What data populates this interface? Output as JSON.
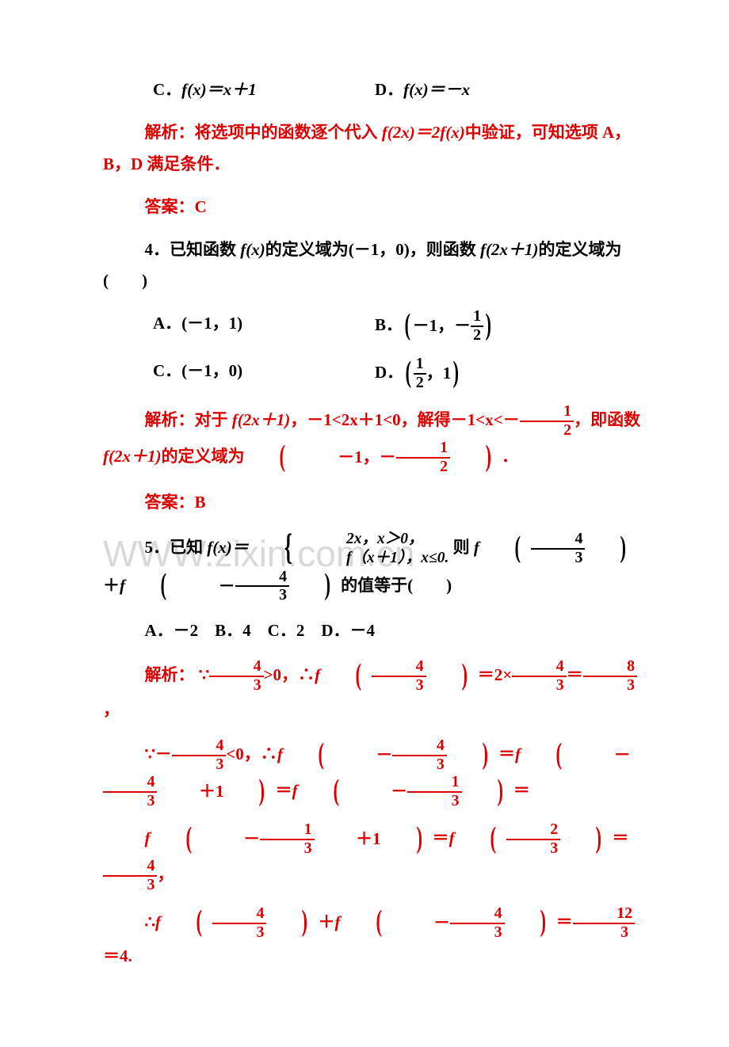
{
  "q3": {
    "optC": "C．",
    "optC_fx": "f(x)＝x＋1",
    "optD": "D．",
    "optD_fx": "f(x)＝－x",
    "jiexi_label": "解析：",
    "jiexi_part1": "将选项中的函数逐个代入 ",
    "jiexi_f2x": "f(2x)＝2f(x)",
    "jiexi_part2": "中验证，可知选项 A，B，D 满足条件．",
    "daan_label": "答案：",
    "daan_val": "C"
  },
  "q4": {
    "stem_a": "4．已知函数 ",
    "stem_fx": "f(x)",
    "stem_b": "的定义域为",
    "stem_interval": "(－1，0)",
    "stem_c": "，则函数 ",
    "stem_f2x1": "f(2x＋1)",
    "stem_d": "的定义域为(　　)",
    "optA": "A．(－1，1)",
    "optB_pre": "B．",
    "optB_in_a": "－1，－",
    "optB_frac_n": "1",
    "optB_frac_d": "2",
    "optC": "C．(－1，0)",
    "optD_pre": "D．",
    "optD_frac_n": "1",
    "optD_frac_d": "2",
    "optD_in_b": "，1",
    "jiexi_label": "解析：",
    "jiexi_a": "对于 ",
    "jiexi_fx": "f(2x＋1)",
    "jiexi_b": "，－1<2x＋1<0，解得－1<x<－",
    "jiexi_frac_n": "1",
    "jiexi_frac_d": "2",
    "jiexi_c": "，即函数 ",
    "jiexi_fx2": "f(2x＋1)",
    "jiexi_d": "的定义域为",
    "jiexi_in_a": "－1，－",
    "jiexi_in_n": "1",
    "jiexi_in_d": "2",
    "jiexi_dot": "．",
    "daan_label": "答案：",
    "daan_val": "B"
  },
  "q5": {
    "stem_a": "5．已知 ",
    "stem_fx": "f(x)＝",
    "case1a": "2x，",
    "case1b": "x＞0，",
    "case2a": "f（x＋1），",
    "case2b": "x≤0.",
    "stem_b": "则 ",
    "stem_f1": "f",
    "frac43_n": "4",
    "frac43_d": "3",
    "stem_plus": "＋",
    "stem_f2": "f",
    "neg43_pre": "－",
    "stem_c": "的值等于(　　)",
    "opts": "A．－2　B．4　C．2　D．－4",
    "jiexi_label": "解析：",
    "l1_a": "∵",
    "l1_frac_n": "4",
    "l1_frac_d": "3",
    "l1_b": ">0，∴",
    "l1_c": "f",
    "l1_d": "＝2×",
    "l1_e": "＝",
    "l1_frac8_n": "8",
    "l1_frac8_d": "3",
    "l1_f": "，",
    "l2_a": "∵－",
    "l2_b": "<0，∴",
    "l2_c": "f",
    "l2_neg": "－",
    "l2_d": "＝",
    "l2_plus1": "＋1",
    "l2_f13_n": "1",
    "l2_f13_d": "3",
    "l3_f23_n": "2",
    "l3_f23_d": "3",
    "l3_eq4_n": "4",
    "l3_eq4_d": "3",
    "l3_end": "，",
    "l4_a": "∴",
    "l4_f": "f",
    "l4_plus": "＋",
    "l4_neg": "－",
    "l4_eq": "＝",
    "l4_12n": "12",
    "l4_12d": "3",
    "l4_res": "＝4."
  },
  "watermark": "WWW.zixin.com.cn"
}
